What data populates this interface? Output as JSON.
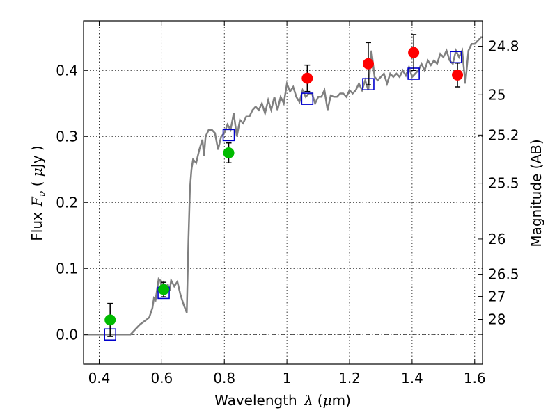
{
  "chart_data": {
    "type": "scatter",
    "xlabel": "Wavelength",
    "xlabel_math": "λ",
    "xlabel_unit_open": " (",
    "xlabel_unit_mu": "μ",
    "xlabel_unit_close": "m)",
    "ylabel": "Flux",
    "ylabel_math": "F",
    "ylabel_math_sub": "ν",
    "ylabel_unit_open": "  ( ",
    "ylabel_unit_mu": "μ",
    "ylabel_unit_close": "Jy )",
    "y2label": "Magnitude (AB)",
    "xlim": [
      0.35,
      1.625
    ],
    "ylim": [
      -0.045,
      0.475
    ],
    "grid": true,
    "x_ticks": [
      {
        "value": 0.4,
        "label": "0.4"
      },
      {
        "value": 0.6,
        "label": "0.6"
      },
      {
        "value": 0.8,
        "label": "0.8"
      },
      {
        "value": 1.0,
        "label": "1"
      },
      {
        "value": 1.2,
        "label": "1.2"
      },
      {
        "value": 1.4,
        "label": "1.4"
      },
      {
        "value": 1.6,
        "label": "1.6"
      }
    ],
    "y_ticks": [
      {
        "value": 0.0,
        "label": "0.0"
      },
      {
        "value": 0.1,
        "label": "0.1"
      },
      {
        "value": 0.2,
        "label": "0.2"
      },
      {
        "value": 0.3,
        "label": "0.3"
      },
      {
        "value": 0.4,
        "label": "0.4"
      }
    ],
    "y2_ticks": [
      {
        "value": 24.8,
        "label": "24.8"
      },
      {
        "value": 25.0,
        "label": "25"
      },
      {
        "value": 25.2,
        "label": "25.2"
      },
      {
        "value": 25.5,
        "label": "25.5"
      },
      {
        "value": 26.0,
        "label": "26"
      },
      {
        "value": 26.5,
        "label": "26.5"
      },
      {
        "value": 27.0,
        "label": "27"
      },
      {
        "value": 28.0,
        "label": "28"
      }
    ],
    "zero_line": 0.0,
    "model_spectrum": {
      "color": "#808080",
      "x": [
        0.35,
        0.5,
        0.51,
        0.53,
        0.55,
        0.56,
        0.57,
        0.575,
        0.58,
        0.59,
        0.595,
        0.6,
        0.605,
        0.61,
        0.62,
        0.625,
        0.63,
        0.64,
        0.65,
        0.66,
        0.67,
        0.68,
        0.685,
        0.69,
        0.695,
        0.7,
        0.71,
        0.72,
        0.73,
        0.735,
        0.74,
        0.75,
        0.76,
        0.77,
        0.78,
        0.79,
        0.8,
        0.81,
        0.82,
        0.83,
        0.84,
        0.85,
        0.86,
        0.87,
        0.88,
        0.89,
        0.9,
        0.91,
        0.92,
        0.93,
        0.94,
        0.95,
        0.96,
        0.97,
        0.98,
        0.99,
        1.0,
        1.01,
        1.02,
        1.03,
        1.04,
        1.05,
        1.06,
        1.07,
        1.08,
        1.09,
        1.1,
        1.11,
        1.12,
        1.13,
        1.14,
        1.15,
        1.16,
        1.17,
        1.18,
        1.19,
        1.2,
        1.21,
        1.22,
        1.23,
        1.24,
        1.25,
        1.26,
        1.27,
        1.28,
        1.29,
        1.3,
        1.31,
        1.32,
        1.33,
        1.34,
        1.35,
        1.36,
        1.37,
        1.38,
        1.39,
        1.4,
        1.41,
        1.42,
        1.43,
        1.44,
        1.45,
        1.46,
        1.47,
        1.48,
        1.49,
        1.5,
        1.51,
        1.52,
        1.53,
        1.54,
        1.55,
        1.56,
        1.57,
        1.58,
        1.59,
        1.6,
        1.61,
        1.62,
        1.625
      ],
      "y": [
        0.0,
        0.0,
        0.005,
        0.015,
        0.022,
        0.026,
        0.04,
        0.055,
        0.052,
        0.084,
        0.082,
        0.07,
        0.078,
        0.073,
        0.075,
        0.066,
        0.082,
        0.073,
        0.08,
        0.06,
        0.045,
        0.033,
        0.14,
        0.22,
        0.25,
        0.265,
        0.26,
        0.28,
        0.295,
        0.27,
        0.3,
        0.31,
        0.31,
        0.305,
        0.28,
        0.3,
        0.305,
        0.318,
        0.31,
        0.335,
        0.3,
        0.325,
        0.32,
        0.33,
        0.33,
        0.34,
        0.345,
        0.34,
        0.35,
        0.335,
        0.355,
        0.34,
        0.36,
        0.34,
        0.36,
        0.35,
        0.38,
        0.368,
        0.375,
        0.36,
        0.352,
        0.37,
        0.36,
        0.365,
        0.365,
        0.35,
        0.36,
        0.36,
        0.37,
        0.34,
        0.362,
        0.36,
        0.36,
        0.365,
        0.365,
        0.36,
        0.37,
        0.365,
        0.37,
        0.38,
        0.37,
        0.385,
        0.37,
        0.43,
        0.39,
        0.385,
        0.39,
        0.395,
        0.38,
        0.395,
        0.39,
        0.395,
        0.39,
        0.4,
        0.392,
        0.405,
        0.39,
        0.395,
        0.4,
        0.41,
        0.4,
        0.415,
        0.408,
        0.415,
        0.41,
        0.425,
        0.42,
        0.43,
        0.415,
        0.41,
        0.43,
        0.42,
        0.43,
        0.38,
        0.43,
        0.44,
        0.44,
        0.445,
        0.45,
        0.45
      ]
    },
    "model_photometry": {
      "color": "#0000cc",
      "points": [
        {
          "x": 0.435,
          "y": 0.0
        },
        {
          "x": 0.606,
          "y": 0.063
        },
        {
          "x": 0.814,
          "y": 0.302
        },
        {
          "x": 1.065,
          "y": 0.357
        },
        {
          "x": 1.26,
          "y": 0.379
        },
        {
          "x": 1.405,
          "y": 0.395
        },
        {
          "x": 1.54,
          "y": 0.42
        }
      ]
    },
    "observed_optical": {
      "color": "#00bb00",
      "points": [
        {
          "x": 0.435,
          "y": 0.022,
          "err": 0.025
        },
        {
          "x": 0.606,
          "y": 0.068,
          "err": 0.011
        },
        {
          "x": 0.814,
          "y": 0.275,
          "err": 0.015
        }
      ]
    },
    "observed_nir": {
      "color": "#ff0000",
      "points": [
        {
          "x": 1.065,
          "y": 0.388,
          "err": 0.02
        },
        {
          "x": 1.26,
          "y": 0.41,
          "err": 0.032
        },
        {
          "x": 1.405,
          "y": 0.427,
          "err": 0.027
        },
        {
          "x": 1.545,
          "y": 0.393,
          "err": 0.018
        }
      ]
    }
  }
}
